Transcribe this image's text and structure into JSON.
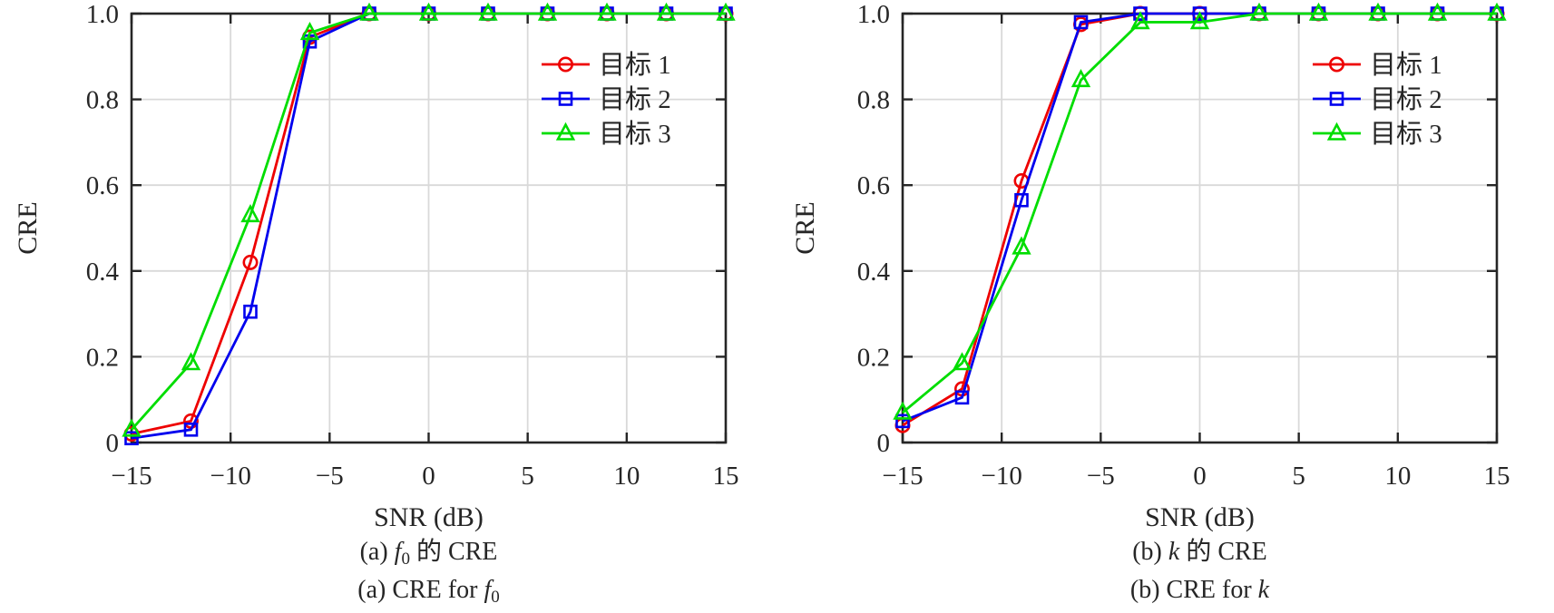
{
  "style": {
    "axis_color": "#262626",
    "grid_color": "#d9d9d9",
    "background": "#ffffff",
    "series_red": "#ee0000",
    "series_blue": "#0000ee",
    "series_green": "#00dd00"
  },
  "chart_data": [
    {
      "id": "a",
      "type": "line",
      "title": "",
      "xlabel": "SNR (dB)",
      "ylabel": "CRE",
      "xlim": [
        -15,
        15
      ],
      "ylim": [
        0,
        1
      ],
      "grid": true,
      "legend_position": "inside-top-right",
      "xticks": [
        -15,
        -10,
        -5,
        0,
        5,
        10,
        15
      ],
      "xtick_labels": [
        "−15",
        "−10",
        "−5",
        "0",
        "5",
        "10",
        "15"
      ],
      "yticks": [
        0,
        0.2,
        0.4,
        0.6,
        0.8,
        1
      ],
      "ytick_labels": [
        "0",
        "0.2",
        "0.4",
        "0.6",
        "0.8",
        "1.0"
      ],
      "x": [
        -15,
        -12,
        -9,
        -6,
        -3,
        0,
        3,
        6,
        9,
        12,
        15
      ],
      "series": [
        {
          "name": "目标 1",
          "color": "#ee0000",
          "marker": "circle",
          "values": [
            0.02,
            0.05,
            0.42,
            0.945,
            1,
            1,
            1,
            1,
            1,
            1,
            1
          ]
        },
        {
          "name": "目标 2",
          "color": "#0000ee",
          "marker": "square",
          "values": [
            0.01,
            0.03,
            0.305,
            0.935,
            1,
            1,
            1,
            1,
            1,
            1,
            1
          ]
        },
        {
          "name": "目标 3",
          "color": "#00dd00",
          "marker": "triangle",
          "values": [
            0.03,
            0.185,
            0.53,
            0.955,
            1,
            1,
            1,
            1,
            1,
            1,
            1
          ]
        }
      ],
      "caption1": {
        "prefix": "(a) ",
        "var": "f",
        "sub": "0",
        "suffix": " 的 CRE"
      },
      "caption2": {
        "prefix": "(a) CRE for ",
        "var": "f",
        "sub": "0",
        "suffix": ""
      }
    },
    {
      "id": "b",
      "type": "line",
      "title": "",
      "xlabel": "SNR (dB)",
      "ylabel": "CRE",
      "xlim": [
        -15,
        15
      ],
      "ylim": [
        0,
        1
      ],
      "grid": true,
      "legend_position": "inside-top-right",
      "xticks": [
        -15,
        -10,
        -5,
        0,
        5,
        10,
        15
      ],
      "xtick_labels": [
        "−15",
        "−10",
        "−5",
        "0",
        "5",
        "10",
        "15"
      ],
      "yticks": [
        0,
        0.2,
        0.4,
        0.6,
        0.8,
        1
      ],
      "ytick_labels": [
        "0",
        "0.2",
        "0.4",
        "0.6",
        "0.8",
        "1.0"
      ],
      "x": [
        -15,
        -12,
        -9,
        -6,
        -3,
        0,
        3,
        6,
        9,
        12,
        15
      ],
      "series": [
        {
          "name": "目标 1",
          "color": "#ee0000",
          "marker": "circle",
          "values": [
            0.04,
            0.125,
            0.61,
            0.975,
            1,
            1,
            1,
            1,
            1,
            1,
            1
          ]
        },
        {
          "name": "目标 2",
          "color": "#0000ee",
          "marker": "square",
          "values": [
            0.05,
            0.105,
            0.565,
            0.98,
            1,
            1,
            1,
            1,
            1,
            1,
            1
          ]
        },
        {
          "name": "目标 3",
          "color": "#00dd00",
          "marker": "triangle",
          "values": [
            0.07,
            0.185,
            0.455,
            0.845,
            0.98,
            0.98,
            1,
            1,
            1,
            1,
            1
          ]
        }
      ],
      "caption1": {
        "prefix": "(b) ",
        "var": "k",
        "sub": "",
        "suffix": " 的 CRE"
      },
      "caption2": {
        "prefix": "(b) CRE for ",
        "var": "k",
        "sub": "",
        "suffix": ""
      }
    }
  ]
}
